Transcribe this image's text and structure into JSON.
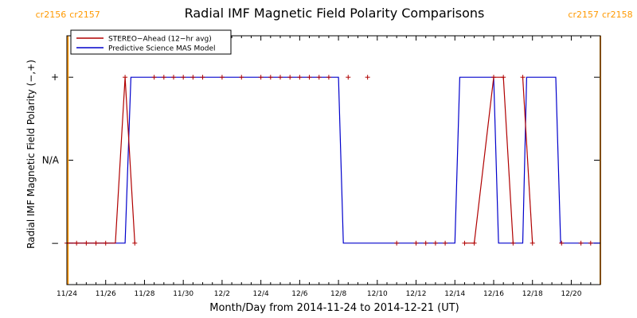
{
  "chart_data": {
    "type": "line",
    "title": "Radial IMF Magnetic Field Polarity Comparisons",
    "xlabel": "Month/Day from 2014-11-24 to 2014-12-21 (UT)",
    "ylabel": "Radial IMF Magnetic Field Polarity (−,+)",
    "x_unit": "days since 2014-11-24 00:00 UT",
    "xlim": [
      0,
      27.5
    ],
    "ylim": [
      -1.5,
      1.5
    ],
    "y_ticks": [
      {
        "value": 1,
        "label": "+"
      },
      {
        "value": 0,
        "label": "N/A"
      },
      {
        "value": -1,
        "label": "−"
      }
    ],
    "x_ticks": [
      {
        "value": 0,
        "label": "11/24"
      },
      {
        "value": 2,
        "label": "11/26"
      },
      {
        "value": 4,
        "label": "11/28"
      },
      {
        "value": 6,
        "label": "11/30"
      },
      {
        "value": 8,
        "label": "12/2"
      },
      {
        "value": 10,
        "label": "12/4"
      },
      {
        "value": 12,
        "label": "12/6"
      },
      {
        "value": 14,
        "label": "12/8"
      },
      {
        "value": 16,
        "label": "12/10"
      },
      {
        "value": 18,
        "label": "12/12"
      },
      {
        "value": 20,
        "label": "12/14"
      },
      {
        "value": 22,
        "label": "12/16"
      },
      {
        "value": 24,
        "label": "12/18"
      },
      {
        "value": 26,
        "label": "12/20"
      }
    ],
    "legend": {
      "position": "top-left",
      "entries": [
        {
          "label": "STEREO−Ahead (12−hr avg)",
          "color": "#b00000"
        },
        {
          "label": "Predictive Science MAS Model",
          "color": "#0000cc"
        }
      ]
    },
    "carrington": [
      {
        "x": 0.05,
        "left": "cr2156",
        "right": "cr2157"
      },
      {
        "x": 27.5,
        "left": "cr2157",
        "right": "cr2158"
      }
    ],
    "carrington_color": "#ff9900",
    "series": [
      {
        "name": "STEREO−Ahead (12−hr avg)",
        "color": "#b00000",
        "marker": "+",
        "points": [
          [
            0,
            -1
          ],
          [
            0.5,
            -1
          ],
          [
            1,
            -1
          ],
          [
            1.5,
            -1
          ],
          [
            2,
            -1
          ],
          [
            3,
            1
          ],
          [
            3.5,
            -1
          ],
          [
            4.5,
            1
          ],
          [
            5,
            1
          ],
          [
            5.5,
            1
          ],
          [
            6,
            1
          ],
          [
            6.5,
            1
          ],
          [
            7,
            1
          ],
          [
            8,
            1
          ],
          [
            9,
            1
          ],
          [
            10,
            1
          ],
          [
            10.5,
            1
          ],
          [
            11,
            1
          ],
          [
            11.5,
            1
          ],
          [
            12,
            1
          ],
          [
            12.5,
            1
          ],
          [
            13,
            1
          ],
          [
            13.5,
            1
          ],
          [
            14.5,
            1
          ],
          [
            15.5,
            1
          ],
          [
            17,
            -1
          ],
          [
            18,
            -1
          ],
          [
            18.5,
            -1
          ],
          [
            19,
            -1
          ],
          [
            19.5,
            -1
          ],
          [
            20.5,
            -1
          ],
          [
            21,
            -1
          ],
          [
            22,
            1
          ],
          [
            22.5,
            1
          ],
          [
            23,
            -1
          ],
          [
            23.5,
            1
          ],
          [
            24,
            -1
          ],
          [
            25.5,
            -1
          ],
          [
            26.5,
            -1
          ],
          [
            27,
            -1
          ]
        ],
        "connected": [
          [
            [
              0,
              -1
            ],
            [
              0.5,
              -1
            ],
            [
              1,
              -1
            ],
            [
              1.5,
              -1
            ],
            [
              2,
              -1
            ],
            [
              2.5,
              -1
            ],
            [
              3,
              1
            ],
            [
              3.5,
              -1
            ]
          ],
          [
            [
              20.5,
              -1
            ],
            [
              21,
              -1
            ],
            [
              22,
              1
            ],
            [
              22.5,
              1
            ],
            [
              23,
              -1
            ]
          ],
          [
            [
              23.5,
              1
            ],
            [
              24,
              -1
            ]
          ]
        ]
      },
      {
        "name": "Predictive Science MAS Model",
        "color": "#0000cc",
        "x": [
          0,
          3,
          3.3,
          14,
          14.25,
          20,
          20.25,
          22,
          22.25,
          23,
          23.25,
          23.5,
          23.7,
          25.2,
          25.45,
          27.5
        ],
        "y": [
          -1,
          -1,
          1,
          1,
          -1,
          -1,
          1,
          1,
          -1,
          -1,
          -1,
          -1,
          1,
          1,
          -1,
          -1
        ]
      }
    ]
  }
}
